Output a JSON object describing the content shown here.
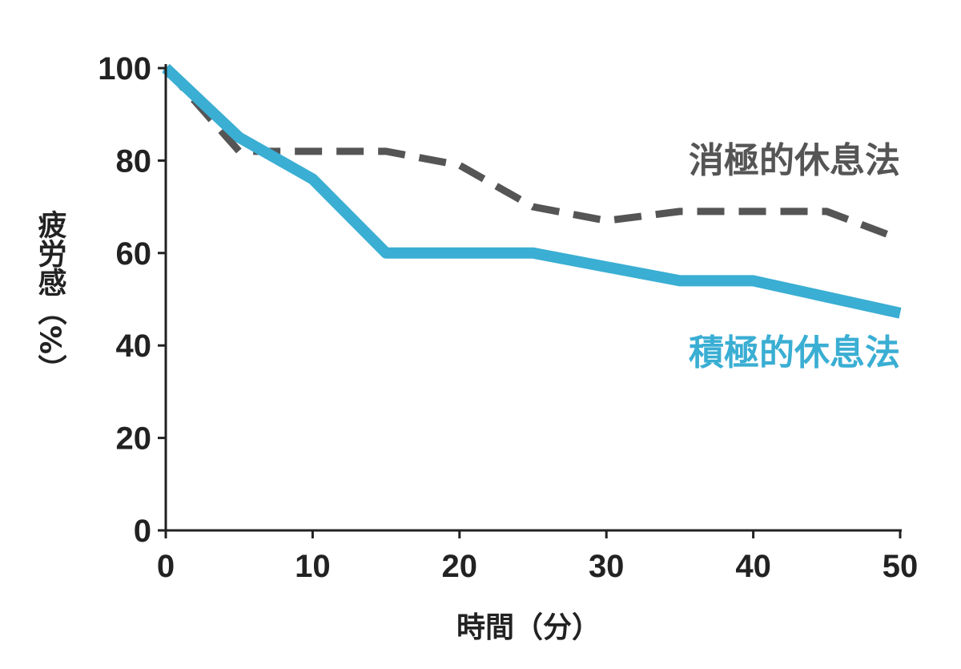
{
  "chart_data": {
    "type": "line",
    "title": "",
    "xlabel": "時間（分）",
    "ylabel": "疲労感（%）",
    "xlim": [
      0,
      50
    ],
    "ylim": [
      0,
      100
    ],
    "xticks": [
      0,
      10,
      20,
      30,
      40,
      50
    ],
    "yticks": [
      0,
      20,
      40,
      60,
      80,
      100
    ],
    "grid": false,
    "legend_placement": "inline-right",
    "series": [
      {
        "name": "消極的休息法",
        "color": "#555555",
        "style": "dashed",
        "x": [
          0,
          5,
          15,
          20,
          25,
          30,
          35,
          45,
          50
        ],
        "y": [
          100,
          82,
          82,
          79,
          70,
          67,
          69,
          69,
          63
        ]
      },
      {
        "name": "積極的休息法",
        "color": "#3aaed3",
        "style": "solid",
        "x": [
          0,
          5,
          10,
          15,
          25,
          35,
          40,
          50
        ],
        "y": [
          100,
          85,
          76,
          60,
          60,
          54,
          54,
          47
        ]
      }
    ]
  }
}
